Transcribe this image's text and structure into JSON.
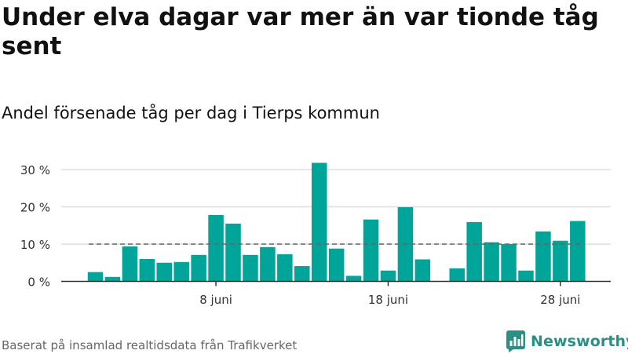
{
  "chart_data": {
    "type": "bar",
    "title": "Under elva dagar var mer än var tionde tåg sent",
    "subtitle": "Andel försenade tåg per dag i Tierps kommun",
    "categories": [
      "1 juni",
      "2 juni",
      "3 juni",
      "4 juni",
      "5 juni",
      "6 juni",
      "7 juni",
      "8 juni",
      "9 juni",
      "10 juni",
      "11 juni",
      "12 juni",
      "13 juni",
      "14 juni",
      "15 juni",
      "16 juni",
      "17 juni",
      "18 juni",
      "19 juni",
      "20 juni",
      "21 juni",
      "22 juni",
      "23 juni",
      "24 juni",
      "25 juni",
      "26 juni",
      "27 juni",
      "28 juni",
      "29 juni"
    ],
    "values": [
      2.5,
      1.2,
      9.4,
      6.0,
      5.0,
      5.2,
      7.1,
      17.8,
      15.5,
      7.1,
      9.2,
      7.3,
      4.1,
      31.8,
      8.8,
      1.5,
      16.6,
      2.9,
      19.9,
      5.9,
      null,
      3.5,
      15.9,
      10.5,
      10.0,
      2.9,
      13.4,
      10.9,
      16.2
    ],
    "x_ticks": [
      {
        "day": 8,
        "label": "8 juni"
      },
      {
        "day": 18,
        "label": "18 juni"
      },
      {
        "day": 28,
        "label": "28 juni"
      }
    ],
    "y_ticks": [
      {
        "value": 0,
        "label": "0 %"
      },
      {
        "value": 10,
        "label": "10 %"
      },
      {
        "value": 20,
        "label": "20 %"
      },
      {
        "value": 30,
        "label": "30 %"
      }
    ],
    "reference_line": 10,
    "ylim": [
      0,
      33
    ],
    "grid": true,
    "bar_color": "#00a499",
    "grid_color": "#dddddd",
    "reference_color": "#666666"
  },
  "footer": {
    "source": "Baserat på insamlad realtidsdata från Trafikverket",
    "brand": "Newsworthy",
    "brand_icon": "newsworthy-bar-chart-icon",
    "brand_color": "#2a8f85"
  }
}
